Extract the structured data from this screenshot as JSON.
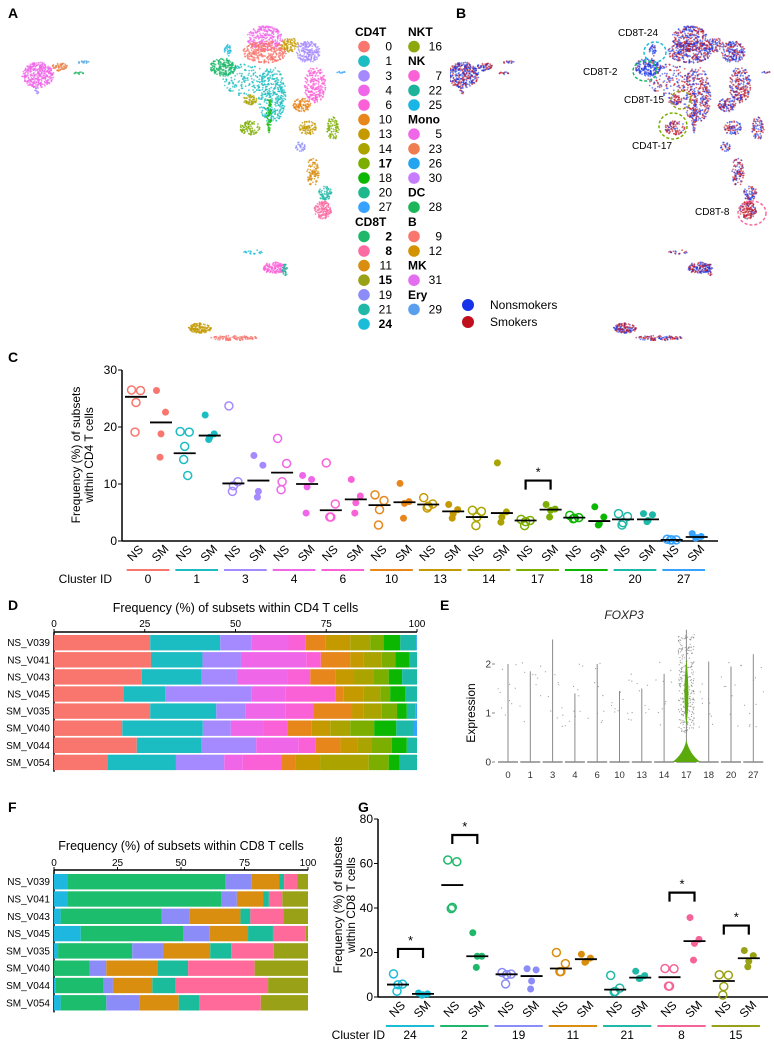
{
  "panel_labels": [
    "A",
    "B",
    "C",
    "D",
    "E",
    "F",
    "G"
  ],
  "legend_a": {
    "columns": [
      [
        {
          "name": "CD4T",
          "items": [
            {
              "id": "0",
              "color": "#F8766D",
              "bold": false
            },
            {
              "id": "1",
              "color": "#1CBDC2",
              "bold": false
            },
            {
              "id": "3",
              "color": "#A58AFF",
              "bold": false
            },
            {
              "id": "4",
              "color": "#F066E8",
              "bold": false
            },
            {
              "id": "6",
              "color": "#FB61D7",
              "bold": false
            },
            {
              "id": "10",
              "color": "#E7861B",
              "bold": false
            },
            {
              "id": "13",
              "color": "#C49A00",
              "bold": false
            },
            {
              "id": "14",
              "color": "#ABA300",
              "bold": false
            },
            {
              "id": "17",
              "color": "#7CAE00",
              "bold": true
            },
            {
              "id": "18",
              "color": "#0CB702",
              "bold": false
            },
            {
              "id": "20",
              "color": "#1DB98C",
              "bold": false
            },
            {
              "id": "27",
              "color": "#35A2FF",
              "bold": false
            }
          ]
        },
        {
          "name": "CD8T",
          "items": [
            {
              "id": "2",
              "color": "#1FB86A",
              "bold": true
            },
            {
              "id": "8",
              "color": "#FB6AA2",
              "bold": true
            },
            {
              "id": "11",
              "color": "#DA8E10",
              "bold": false
            },
            {
              "id": "15",
              "color": "#99A117",
              "bold": true
            },
            {
              "id": "19",
              "color": "#8C8CF8",
              "bold": false
            },
            {
              "id": "21",
              "color": "#22B8A8",
              "bold": false
            },
            {
              "id": "24",
              "color": "#1BBCD8",
              "bold": true
            }
          ]
        }
      ],
      [
        {
          "name": "NKT",
          "items": [
            {
              "id": "16",
              "color": "#8CA80C",
              "bold": false
            }
          ]
        },
        {
          "name": "NK",
          "items": [
            {
              "id": "7",
              "color": "#FB61D7",
              "bold": false
            },
            {
              "id": "22",
              "color": "#1DB39A",
              "bold": false
            },
            {
              "id": "25",
              "color": "#19B5E5",
              "bold": false
            }
          ]
        },
        {
          "name": "Mono",
          "items": [
            {
              "id": "5",
              "color": "#F066E8",
              "bold": false
            },
            {
              "id": "23",
              "color": "#F07D50",
              "bold": false
            },
            {
              "id": "26",
              "color": "#22A5EE",
              "bold": false
            },
            {
              "id": "30",
              "color": "#C77CFF",
              "bold": false
            }
          ]
        },
        {
          "name": "DC",
          "items": [
            {
              "id": "28",
              "color": "#1DB55A",
              "bold": false
            }
          ]
        },
        {
          "name": "B",
          "items": [
            {
              "id": "9",
              "color": "#F8766D",
              "bold": false
            },
            {
              "id": "12",
              "color": "#D39200",
              "bold": false
            }
          ]
        },
        {
          "name": "MK",
          "items": [
            {
              "id": "31",
              "color": "#E46EF0",
              "bold": false
            }
          ]
        },
        {
          "name": "Ery",
          "items": [
            {
              "id": "29",
              "color": "#5A9FEE",
              "bold": false
            }
          ]
        }
      ]
    ]
  },
  "umap_b": {
    "annotations": [
      {
        "label": "CD8T-24",
        "color": "#1BBCD8"
      },
      {
        "label": "CD8T-2",
        "color": "#1FB86A"
      },
      {
        "label": "CD8T-15",
        "color": "#99A117"
      },
      {
        "label": "CD4T-17",
        "color": "#7CAE00"
      },
      {
        "label": "CD8T-8",
        "color": "#FB6AA2"
      }
    ],
    "legend": [
      {
        "label": "Nonsmokers",
        "color": "#1533E8"
      },
      {
        "label": "Smokers",
        "color": "#C0101E"
      }
    ]
  },
  "chart_data": [
    {
      "panel": "C",
      "type": "scatter",
      "ylabel": [
        "Frequency (%) of subsets",
        "within CD4 T cells"
      ],
      "xlabel": "Cluster ID",
      "ylim": [
        0,
        30
      ],
      "yticks": [
        0,
        10,
        20,
        30
      ],
      "group_labels": [
        "NS",
        "SM"
      ],
      "clusters": [
        {
          "id": "0",
          "color": "#F8766D",
          "NS": [
            26.5,
            26.4,
            24.3,
            19.1
          ],
          "NS_mean": 25.3,
          "SM": [
            26.4,
            22.6,
            18.8,
            14.7
          ],
          "SM_mean": 20.8,
          "significant": false
        },
        {
          "id": "1",
          "color": "#1CBDC2",
          "NS": [
            19.2,
            19.1,
            16.6,
            14.3,
            11.5
          ],
          "NS_mean": 15.4,
          "SM": [
            22.1,
            18.8,
            18.2,
            17.8
          ],
          "SM_mean": 18.5,
          "significant": false
        },
        {
          "id": "3",
          "color": "#A58AFF",
          "NS": [
            23.7,
            10.4,
            9.7,
            8.7
          ],
          "NS_mean": 10.1,
          "SM": [
            15.0,
            13.3,
            8.7,
            7.7
          ],
          "SM_mean": 10.6,
          "significant": false
        },
        {
          "id": "4",
          "color": "#F066E8",
          "NS": [
            18.0,
            13.6,
            10.4,
            9.0
          ],
          "NS_mean": 12.0,
          "SM": [
            11.5,
            10.8,
            9.5,
            4.9
          ],
          "SM_mean": 10.0,
          "significant": false
        },
        {
          "id": "6",
          "color": "#FB61D7",
          "NS": [
            13.7,
            6.5,
            4.2,
            4.2
          ],
          "NS_mean": 5.4,
          "SM": [
            10.8,
            7.9,
            6.7,
            4.9
          ],
          "SM_mean": 7.3,
          "significant": false
        },
        {
          "id": "10",
          "color": "#E7861B",
          "NS": [
            8.1,
            7.1,
            5.5,
            2.8
          ],
          "NS_mean": 6.3,
          "SM": [
            10.1,
            6.9,
            6.6,
            4.0
          ],
          "SM_mean": 6.8,
          "significant": false
        },
        {
          "id": "13",
          "color": "#C49A00",
          "NS": [
            7.6,
            6.5,
            6.1,
            5.8
          ],
          "NS_mean": 6.4,
          "SM": [
            6.4,
            5.5,
            4.8,
            4.0
          ],
          "SM_mean": 5.2,
          "significant": false
        },
        {
          "id": "14",
          "color": "#ABA300",
          "NS": [
            5.4,
            5.2,
            4.2,
            2.7
          ],
          "NS_mean": 4.2,
          "SM": [
            13.7,
            5.1,
            4.2,
            3.3
          ],
          "SM_mean": 4.9,
          "significant": false
        },
        {
          "id": "17",
          "color": "#7CAE00",
          "NS": [
            3.8,
            3.6,
            3.4,
            2.7
          ],
          "NS_mean": 3.6,
          "SM": [
            6.4,
            5.6,
            5.4,
            4.2
          ],
          "SM_mean": 5.5,
          "significant": true
        },
        {
          "id": "18",
          "color": "#0CB702",
          "NS": [
            4.5,
            4.1,
            4.0,
            3.9
          ],
          "NS_mean": 4.1,
          "SM": [
            6.0,
            4.2,
            3.0,
            2.8
          ],
          "SM_mean": 3.5,
          "significant": false
        },
        {
          "id": "20",
          "color": "#1DB9A8",
          "NS": [
            4.8,
            4.3,
            3.2,
            2.8
          ],
          "NS_mean": 3.8,
          "SM": [
            4.8,
            4.6,
            3.6,
            3.4
          ],
          "SM_mean": 3.8,
          "significant": false
        },
        {
          "id": "27",
          "color": "#35A2FF",
          "NS": [
            0.3,
            0.2,
            0.2,
            0.2
          ],
          "NS_mean": 0.2,
          "SM": [
            1.3,
            0.8,
            0.6,
            0.5
          ],
          "SM_mean": 0.7,
          "significant": false
        }
      ],
      "significance_label": "*"
    },
    {
      "panel": "D",
      "type": "bar",
      "orientation": "horizontal-stacked",
      "title": "Frequency (%) of subsets within CD4 T cells",
      "xlim": [
        0,
        100
      ],
      "xticks": [
        0,
        25,
        50,
        75,
        100
      ],
      "segment_clusters": [
        "0",
        "1",
        "3",
        "4",
        "6",
        "10",
        "13",
        "14",
        "17",
        "18",
        "20",
        "27"
      ],
      "segment_colors": [
        "#F8766D",
        "#1CBDC2",
        "#A58AFF",
        "#F066E8",
        "#FB61D7",
        "#E7861B",
        "#C49A00",
        "#ABA300",
        "#7CAE00",
        "#0CB702",
        "#1DB9A8",
        "#35A2FF"
      ],
      "categories": [
        "NS_V039",
        "NS_V041",
        "NS_V043",
        "NS_V045",
        "SM_V035",
        "SM_V040",
        "SM_V044",
        "SM_V054"
      ],
      "values": [
        [
          26.5,
          19.3,
          8.7,
          10.1,
          4.6,
          5.5,
          6.9,
          5.5,
          3.7,
          4.6,
          4.4,
          0.2
        ],
        [
          26.7,
          14.2,
          10.6,
          18.0,
          4.0,
          8.1,
          3.7,
          5.0,
          3.7,
          4.0,
          2.0,
          0.0
        ],
        [
          24.2,
          16.5,
          9.7,
          13.8,
          6.4,
          6.9,
          5.0,
          5.5,
          4.2,
          3.7,
          4.1,
          0.0
        ],
        [
          19.1,
          11.5,
          23.9,
          9.2,
          13.8,
          2.3,
          5.5,
          4.6,
          2.7,
          4.2,
          3.2,
          0.0
        ],
        [
          26.5,
          18.2,
          8.0,
          11.0,
          7.8,
          10.6,
          3.2,
          5.0,
          4.2,
          2.7,
          2.3,
          0.5
        ],
        [
          18.8,
          22.2,
          7.7,
          9.0,
          6.6,
          6.7,
          5.1,
          5.5,
          6.6,
          6.1,
          4.6,
          1.1
        ],
        [
          22.8,
          17.7,
          15.2,
          11.7,
          4.6,
          6.9,
          4.6,
          4.1,
          5.5,
          4.1,
          2.8,
          0.0
        ],
        [
          14.7,
          18.9,
          13.3,
          5.1,
          10.8,
          3.7,
          6.8,
          13.4,
          5.5,
          3.0,
          4.8,
          0.0
        ]
      ]
    },
    {
      "panel": "E",
      "type": "violin",
      "title": "FOXP3",
      "ylabel": "Expression",
      "yticks": [
        0,
        1,
        2
      ],
      "categories": [
        "0",
        "1",
        "3",
        "4",
        "6",
        "10",
        "13",
        "14",
        "17",
        "18",
        "20",
        "27"
      ],
      "max_expression": [
        2.0,
        1.85,
        2.5,
        1.4,
        2.0,
        1.45,
        1.5,
        1.8,
        2.7,
        2.05,
        1.95,
        2.2
      ],
      "highlight": {
        "cluster": "17",
        "color": "#5BAA0C"
      },
      "line_color": "#8A8A8A"
    },
    {
      "panel": "F",
      "type": "bar",
      "orientation": "horizontal-stacked",
      "title": "Frequency (%) of subsets within CD8 T cells",
      "xlim": [
        0,
        100
      ],
      "xticks": [
        0,
        25,
        50,
        75,
        100
      ],
      "segment_clusters": [
        "24",
        "2",
        "19",
        "11",
        "21",
        "8",
        "15"
      ],
      "segment_colors": [
        "#1DB7E0",
        "#1CBE6E",
        "#8C8CF8",
        "#DA8E10",
        "#1ABC9C",
        "#FF6A9A",
        "#99A117"
      ],
      "categories": [
        "NS_V039",
        "NS_V041",
        "NS_V043",
        "NS_V045",
        "SM_V035",
        "SM_V040",
        "SM_V044",
        "SM_V054"
      ],
      "values": [
        [
          5.5,
          62.1,
          10.3,
          10.7,
          2.0,
          5.1,
          4.3
        ],
        [
          5.5,
          60.4,
          6.1,
          10.3,
          2.3,
          5.3,
          10.1
        ],
        [
          2.6,
          39.7,
          10.9,
          20.2,
          3.9,
          12.9,
          9.8
        ],
        [
          10.5,
          40.3,
          10.5,
          15.1,
          9.8,
          12.9,
          0.9
        ],
        [
          1.6,
          29.2,
          12.1,
          18.6,
          8.3,
          16.7,
          13.5
        ],
        [
          0.0,
          14.0,
          6.6,
          20.1,
          12.1,
          26.2,
          21.0
        ],
        [
          0.5,
          19.1,
          3.6,
          15.5,
          9.2,
          36.4,
          15.7
        ],
        [
          2.6,
          18.0,
          13.1,
          15.4,
          8.0,
          24.3,
          18.6
        ]
      ]
    },
    {
      "panel": "G",
      "type": "scatter",
      "ylabel": [
        "Frequency (%) of subsets",
        "within CD8 T cells"
      ],
      "xlabel": "Cluster ID",
      "ylim": [
        0,
        80
      ],
      "yticks": [
        0,
        20,
        40,
        60,
        80
      ],
      "group_labels": [
        "NS",
        "SM"
      ],
      "clusters": [
        {
          "id": "24",
          "color": "#1BBCD8",
          "NS": [
            10.4,
            5.8,
            5.5,
            2.6
          ],
          "NS_mean": 5.6,
          "SM": [
            1.8,
            1.4,
            1.0,
            0.8
          ],
          "SM_mean": 1.4,
          "significant": true
        },
        {
          "id": "2",
          "color": "#1FB86A",
          "NS": [
            61.6,
            60.8,
            40.3,
            39.7
          ],
          "NS_mean": 50.3,
          "SM": [
            28.9,
            18.3,
            18.3,
            13.3
          ],
          "SM_mean": 18.3,
          "significant": true
        },
        {
          "id": "19",
          "color": "#8C8CF8",
          "NS": [
            11.0,
            10.3,
            10.0,
            5.9
          ],
          "NS_mean": 10.2,
          "SM": [
            12.7,
            12.2,
            7.2,
            3.6
          ],
          "SM_mean": 9.4,
          "significant": false
        },
        {
          "id": "11",
          "color": "#DA8E10",
          "NS": [
            20.0,
            15.0,
            11.4,
            11.4
          ],
          "NS_mean": 12.8,
          "SM": [
            19.2,
            17.5,
            16.0,
            15.6
          ],
          "SM_mean": 17.0,
          "significant": false
        },
        {
          "id": "21",
          "color": "#22B8A8",
          "NS": [
            9.7,
            4.0,
            2.5,
            2.3
          ],
          "NS_mean": 3.3,
          "SM": [
            11.6,
            9.6,
            8.4,
            8.3
          ],
          "SM_mean": 8.7,
          "significant": false
        },
        {
          "id": "8",
          "color": "#F56499",
          "NS": [
            12.8,
            12.7,
            4.9,
            4.9
          ],
          "NS_mean": 8.9,
          "SM": [
            35.7,
            25.9,
            24.1,
            16.6
          ],
          "SM_mean": 25.1,
          "significant": true
        },
        {
          "id": "15",
          "color": "#99A117",
          "NS": [
            10.0,
            9.8,
            4.7,
            0.9
          ],
          "NS_mean": 7.2,
          "SM": [
            20.9,
            18.6,
            16.1,
            13.6
          ],
          "SM_mean": 17.4,
          "significant": true
        }
      ],
      "significance_label": "*"
    }
  ]
}
